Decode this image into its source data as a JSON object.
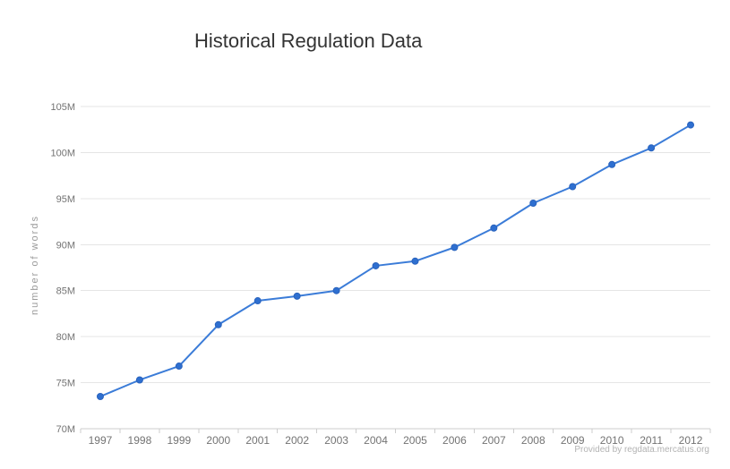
{
  "chart_data": {
    "type": "line",
    "title": "Historical Regulation Data",
    "xlabel": "",
    "ylabel": "number of words",
    "credits": "Provided by regdata.mercatus.org",
    "categories": [
      "1997",
      "1998",
      "1999",
      "2000",
      "2001",
      "2002",
      "2003",
      "2004",
      "2005",
      "2006",
      "2007",
      "2008",
      "2009",
      "2010",
      "2011",
      "2012"
    ],
    "series": [
      {
        "name": "number of words",
        "values": [
          73.5,
          75.3,
          76.8,
          81.3,
          83.9,
          84.4,
          85.0,
          87.7,
          88.2,
          89.7,
          91.8,
          94.5,
          96.3,
          98.7,
          100.5,
          103.0
        ]
      }
    ],
    "value_unit": "M",
    "ylim": [
      70,
      105
    ],
    "y_tick_step": 5,
    "y_tick_labels": [
      "70M",
      "75M",
      "80M",
      "85M",
      "90M",
      "95M",
      "100M",
      "105M"
    ],
    "grid": "horizontal",
    "legend": "none",
    "colors": {
      "line": "#3b7cd8",
      "marker_fill": "#2e6fd0",
      "marker_stroke": "#2a63bd",
      "grid": "#e5e5e5",
      "axis": "#cccccc",
      "tick_label": "#737373",
      "title": "#333333",
      "axis_title": "#9a9a9a",
      "credits": "#b3b3b3"
    }
  }
}
